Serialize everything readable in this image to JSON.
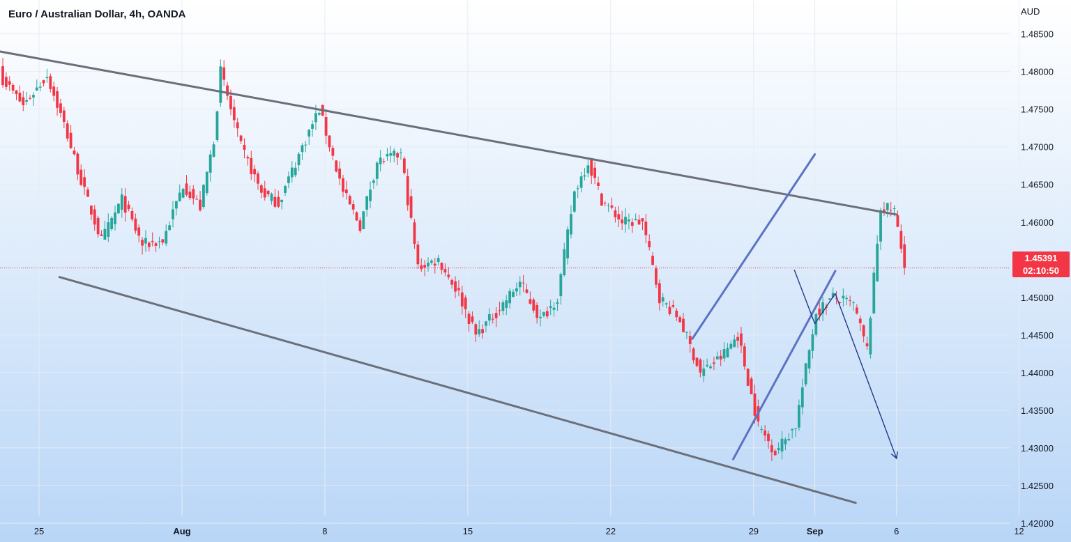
{
  "chart_title": "Euro / Australian Dollar, 4h, OANDA",
  "currency_label": "AUD",
  "current_price": "1.45391",
  "countdown": "02:10:50",
  "colors": {
    "up": "#26a69a",
    "down": "#f23645",
    "channel": "#6b6f7a",
    "rising_channel": "#5b73c2",
    "projection": "#1e3a8a",
    "price_badge": "#f23645"
  },
  "chart_data": {
    "type": "candlestick",
    "instrument": "Euro / Australian Dollar",
    "timeframe": "4h",
    "source": "OANDA",
    "ylim": [
      1.4175,
      1.4895
    ],
    "y_ticks": [
      "1.42000",
      "1.42500",
      "1.43000",
      "1.43500",
      "1.44000",
      "1.44500",
      "1.45000",
      "1.45500",
      "1.46000",
      "1.46500",
      "1.47000",
      "1.47500",
      "1.48000",
      "1.48500"
    ],
    "x_ticks": [
      {
        "label": "25",
        "bold": false
      },
      {
        "label": "Aug",
        "bold": true
      },
      {
        "label": "8",
        "bold": false
      },
      {
        "label": "15",
        "bold": false
      },
      {
        "label": "22",
        "bold": false
      },
      {
        "label": "29",
        "bold": false
      },
      {
        "label": "Sep",
        "bold": true
      },
      {
        "label": "6",
        "bold": false
      },
      {
        "label": "12",
        "bold": false
      }
    ],
    "anchors": [
      [
        0,
        1.479
      ],
      [
        6,
        1.4755
      ],
      [
        13,
        1.4795
      ],
      [
        18,
        1.473
      ],
      [
        24,
        1.464
      ],
      [
        29,
        1.4575
      ],
      [
        35,
        1.463
      ],
      [
        41,
        1.457
      ],
      [
        47,
        1.4575
      ],
      [
        53,
        1.465
      ],
      [
        58,
        1.462
      ],
      [
        62,
        1.471
      ],
      [
        64,
        1.48
      ],
      [
        70,
        1.47
      ],
      [
        76,
        1.464
      ],
      [
        81,
        1.4625
      ],
      [
        88,
        1.47
      ],
      [
        93,
        1.475
      ],
      [
        100,
        1.464
      ],
      [
        105,
        1.4595
      ],
      [
        110,
        1.468
      ],
      [
        117,
        1.469
      ],
      [
        122,
        1.454
      ],
      [
        128,
        1.455
      ],
      [
        134,
        1.4505
      ],
      [
        139,
        1.445
      ],
      [
        145,
        1.448
      ],
      [
        152,
        1.452
      ],
      [
        158,
        1.447
      ],
      [
        163,
        1.45
      ],
      [
        168,
        1.464
      ],
      [
        172,
        1.468
      ],
      [
        176,
        1.463
      ],
      [
        182,
        1.46
      ],
      [
        188,
        1.46
      ],
      [
        193,
        1.45
      ],
      [
        199,
        1.447
      ],
      [
        205,
        1.44
      ],
      [
        211,
        1.442
      ],
      [
        216,
        1.445
      ],
      [
        222,
        1.433
      ],
      [
        227,
        1.4295
      ],
      [
        233,
        1.433
      ],
      [
        239,
        1.448
      ],
      [
        244,
        1.45
      ],
      [
        250,
        1.449
      ],
      [
        254,
        1.443
      ],
      [
        258,
        1.462
      ],
      [
        262,
        1.4615
      ],
      [
        265,
        1.454
      ]
    ],
    "current_price": 1.45391,
    "annotations": [
      {
        "name": "upper-descending-line",
        "points": [
          [
            "Jul 23",
            1.4827
          ],
          [
            "Sep 5",
            1.461
          ]
        ]
      },
      {
        "name": "lower-descending-line",
        "points": [
          [
            "Jul 26",
            1.4527
          ],
          [
            "Sep 3",
            1.4227
          ]
        ]
      },
      {
        "name": "rising-channel-upper",
        "points": [
          [
            "Aug 26",
            1.4445
          ],
          [
            "Sep 1",
            1.469
          ]
        ]
      },
      {
        "name": "rising-channel-lower",
        "points": [
          [
            "Aug 28",
            1.4285
          ],
          [
            "Sep 2",
            1.4535
          ]
        ]
      },
      {
        "name": "projection-path",
        "points": [
          [
            "Aug 31",
            1.4536
          ],
          [
            "Sep 1",
            1.4465
          ],
          [
            "Sep 2",
            1.4505
          ],
          [
            "Sep 5",
            1.4286
          ]
        ]
      }
    ]
  }
}
